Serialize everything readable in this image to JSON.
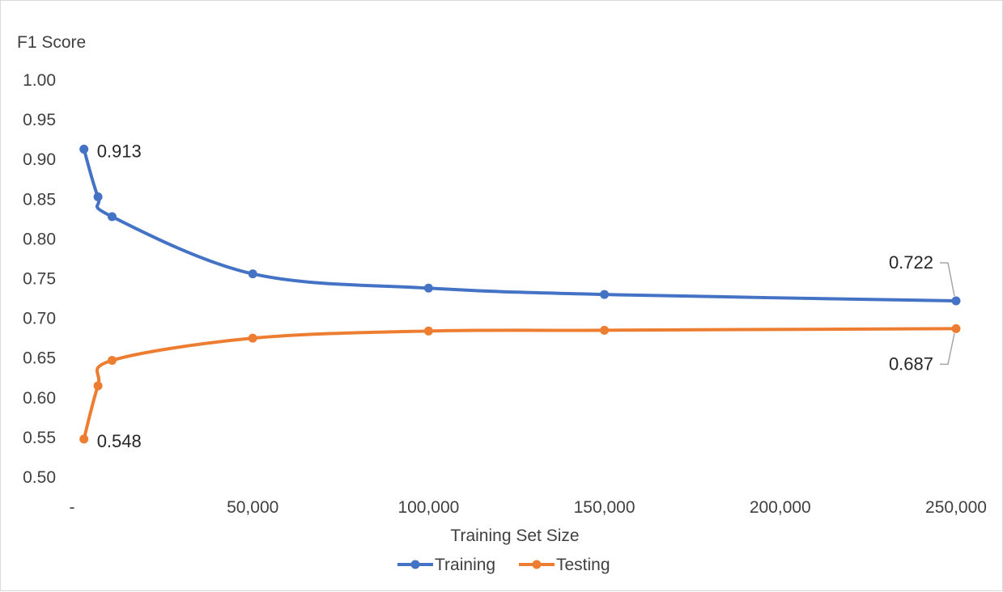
{
  "chart_data": {
    "type": "line",
    "title": "",
    "xlabel": "Training Set Size",
    "ylabel": "F1 Score",
    "xlim": [
      0,
      250000
    ],
    "ylim": [
      0.5,
      1.0
    ],
    "x_ticks": [
      0,
      50000,
      100000,
      150000,
      200000,
      250000
    ],
    "x_tick_labels": [
      "-",
      "50,000",
      "100,000",
      "150,000",
      "200,000",
      "250,000"
    ],
    "y_ticks": [
      0.5,
      0.55,
      0.6,
      0.65,
      0.7,
      0.75,
      0.8,
      0.85,
      0.9,
      0.95,
      1.0
    ],
    "y_tick_labels": [
      "0.50",
      "0.55",
      "0.60",
      "0.65",
      "0.70",
      "0.75",
      "0.80",
      "0.85",
      "0.90",
      "0.95",
      "1.00"
    ],
    "grid": false,
    "legend_position": "bottom",
    "x": [
      2000,
      6000,
      10000,
      50000,
      100000,
      150000,
      250000
    ],
    "series": [
      {
        "name": "Training",
        "color": "#4472C4",
        "values": [
          0.913,
          0.853,
          0.828,
          0.756,
          0.738,
          0.73,
          0.722
        ]
      },
      {
        "name": "Testing",
        "color": "#ED7D31",
        "values": [
          0.548,
          0.615,
          0.647,
          0.675,
          0.684,
          0.685,
          0.687
        ]
      }
    ],
    "data_labels": [
      {
        "series": 0,
        "point": 0,
        "text": "0.913"
      },
      {
        "series": 1,
        "point": 0,
        "text": "0.548"
      },
      {
        "series": 0,
        "point": 6,
        "text": "0.722"
      },
      {
        "series": 1,
        "point": 6,
        "text": "0.687"
      }
    ],
    "leader_color": "#a6a6a6"
  }
}
